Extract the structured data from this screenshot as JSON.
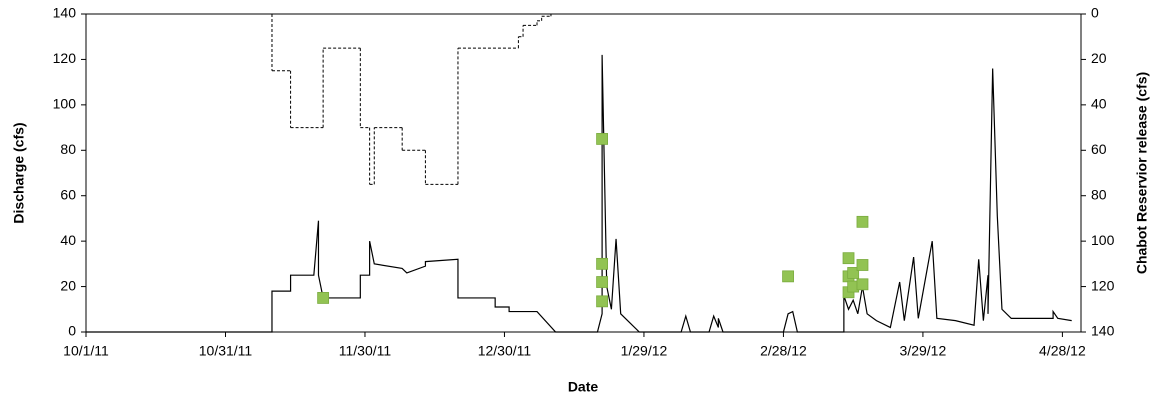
{
  "chart_data": {
    "type": "line",
    "x_label": "Date",
    "y_label": "Discharge (cfs)",
    "y2_label": "Chabot Reservior release (cfs)",
    "xlim": [
      "10/1/11",
      "5/2/12"
    ],
    "xticks": [
      "10/1/11",
      "10/31/11",
      "11/30/11",
      "12/30/11",
      "1/29/12",
      "2/28/12",
      "3/29/12",
      "4/28/12"
    ],
    "ylim": [
      0,
      140
    ],
    "yticks": [
      0,
      20,
      40,
      60,
      80,
      100,
      120,
      140
    ],
    "y2lim": [
      140,
      0
    ],
    "y2ticks": [
      0,
      20,
      40,
      60,
      80,
      100,
      120,
      140
    ],
    "grid": false,
    "series": [
      {
        "type": "line",
        "color": "#000000",
        "x": [
          "10/1/11",
          "11/10/11",
          "11/10/11",
          "11/14/11",
          "11/14/11",
          "11/19/11",
          "11/20/11",
          "11/20/11",
          "11/21/11",
          "11/29/11",
          "11/29/11",
          "12/1/11",
          "12/1/11",
          "12/2/11",
          "12/8/11",
          "12/9/11",
          "12/13/11",
          "12/13/11",
          "12/20/11",
          "12/20/11",
          "12/28/11",
          "12/28/11",
          "12/31/11",
          "12/31/11",
          "1/6/12",
          "1/10/12",
          "1/19/12",
          "1/20/12",
          "1/20/12",
          "1/21/12",
          "1/22/12",
          "1/23/12",
          "1/24/12",
          "1/26/12",
          "1/28/12",
          "2/6/12",
          "2/7/12",
          "2/8/12",
          "2/12/12",
          "2/13/12",
          "2/14/12",
          "2/14/12",
          "2/15/12",
          "2/28/12",
          "2/29/12",
          "3/1/12",
          "3/2/12",
          "3/12/12",
          "3/12/12",
          "3/13/12",
          "3/14/12",
          "3/15/12",
          "3/16/12",
          "3/17/12",
          "3/19/12",
          "3/22/12",
          "3/24/12",
          "3/25/12",
          "3/27/12",
          "3/28/12",
          "3/31/12",
          "4/1/12",
          "4/5/12",
          "4/9/12",
          "4/10/12",
          "4/11/12",
          "4/12/12",
          "4/12/12",
          "4/13/12",
          "4/14/12",
          "4/15/12",
          "4/17/12",
          "4/26/12",
          "4/26/12",
          "4/27/12",
          "4/30/12"
        ],
        "values": [
          0,
          0,
          18,
          18,
          25,
          25,
          49,
          25,
          15,
          15,
          25,
          25,
          40,
          30,
          28,
          26,
          29,
          31,
          32,
          15,
          15,
          11,
          11,
          9,
          9,
          0,
          0,
          8,
          122,
          20,
          10,
          41,
          8,
          4,
          0,
          0,
          7,
          0,
          0,
          7,
          2,
          6,
          0,
          0,
          8,
          9,
          0,
          0,
          16,
          10,
          14,
          8,
          20,
          8,
          5,
          2,
          22,
          5,
          33,
          6,
          40,
          6,
          5,
          3,
          32,
          5,
          25,
          8,
          116,
          51,
          10,
          6,
          6,
          9,
          6,
          5
        ]
      },
      {
        "type": "step",
        "axis": "y2",
        "color": "#000000",
        "x": [
          "11/10/11",
          "11/14/11",
          "11/21/11",
          "11/29/11",
          "12/1/11",
          "12/2/11",
          "12/8/11",
          "12/13/11",
          "12/20/11",
          "1/2/12",
          "1/3/12",
          "1/6/12",
          "1/7/12",
          "1/9/12"
        ],
        "values": [
          25,
          50,
          15,
          50,
          75,
          50,
          60,
          75,
          15,
          10,
          5,
          3,
          1,
          0
        ]
      },
      {
        "type": "scatter",
        "color": "#92c353",
        "x": [
          "11/21/11",
          "1/20/12",
          "1/20/12",
          "1/20/12",
          "1/20/12",
          "2/29/12",
          "3/13/12",
          "3/13/12",
          "3/13/12",
          "3/14/12",
          "3/14/12",
          "3/16/12",
          "3/16/12",
          "3/16/12"
        ],
        "values": [
          15,
          85,
          30,
          22,
          13.5,
          24.5,
          17.5,
          24.5,
          32.5,
          20,
          26,
          48.5,
          29.5,
          21
        ]
      }
    ]
  }
}
